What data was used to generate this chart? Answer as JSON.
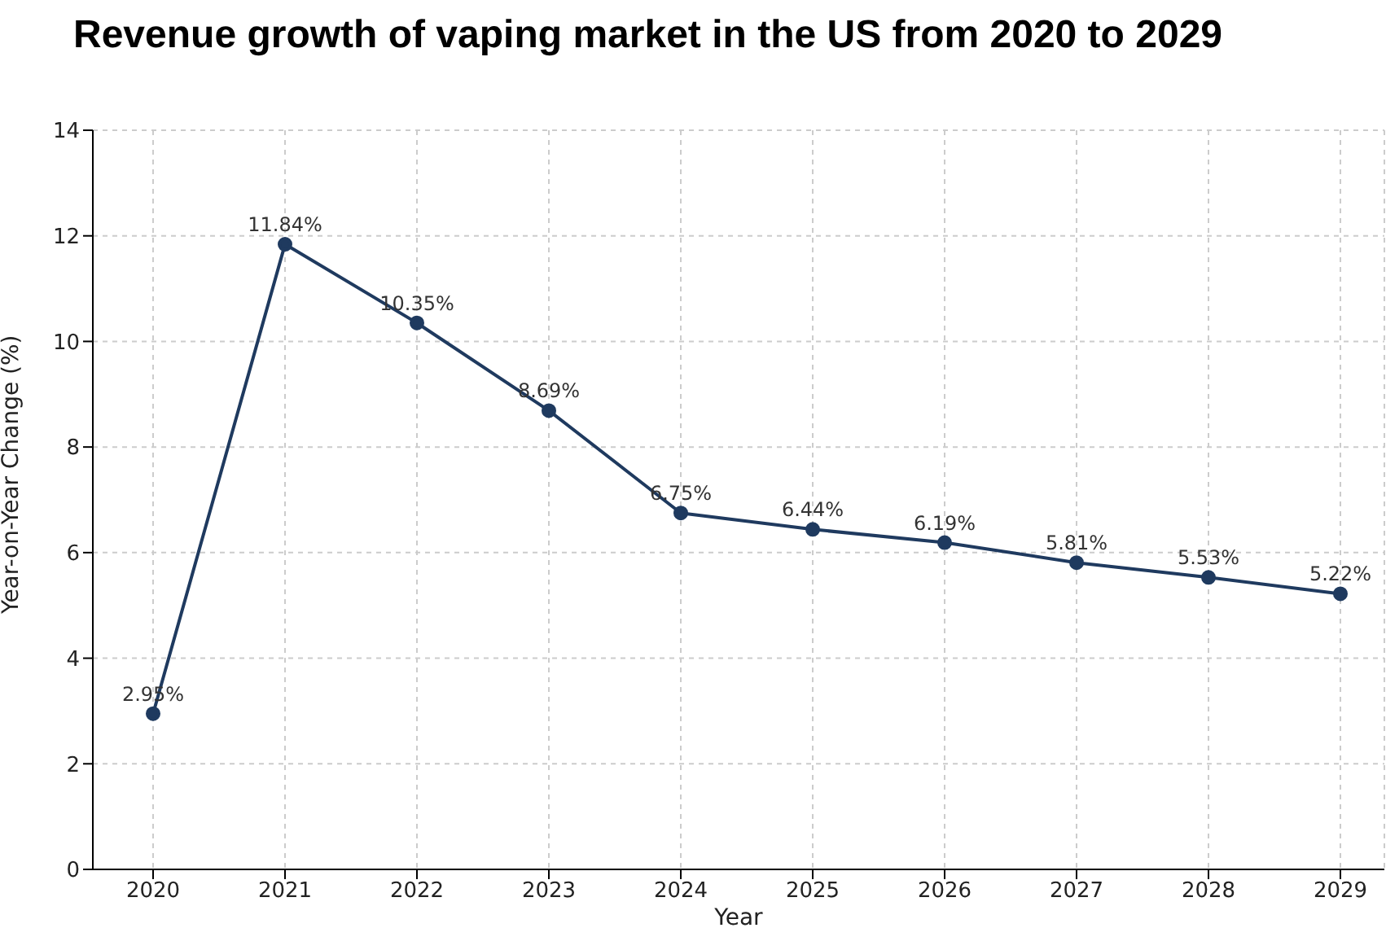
{
  "chart_data": {
    "type": "line",
    "title": "Revenue growth of vaping market in the US from 2020 to 2029",
    "xlabel": "Year",
    "ylabel": "Year-on-Year Change (%)",
    "categories": [
      "2020",
      "2021",
      "2022",
      "2023",
      "2024",
      "2025",
      "2026",
      "2027",
      "2028",
      "2029"
    ],
    "series": [
      {
        "color": "#1f3a5f",
        "values": [
          2.95,
          11.84,
          10.35,
          8.69,
          6.75,
          6.44,
          6.19,
          5.81,
          5.53,
          5.22
        ],
        "value_labels": [
          "2.95%",
          "11.84%",
          "10.35%",
          "8.69%",
          "6.75%",
          "6.44%",
          "6.19%",
          "5.81%",
          "5.53%",
          "5.22%"
        ]
      }
    ],
    "ylim": [
      0,
      14
    ],
    "yticks": [
      0,
      2,
      4,
      6,
      8,
      10,
      12,
      14
    ],
    "grid": true,
    "marker": "circle",
    "line_style": "solid",
    "legend": false
  }
}
